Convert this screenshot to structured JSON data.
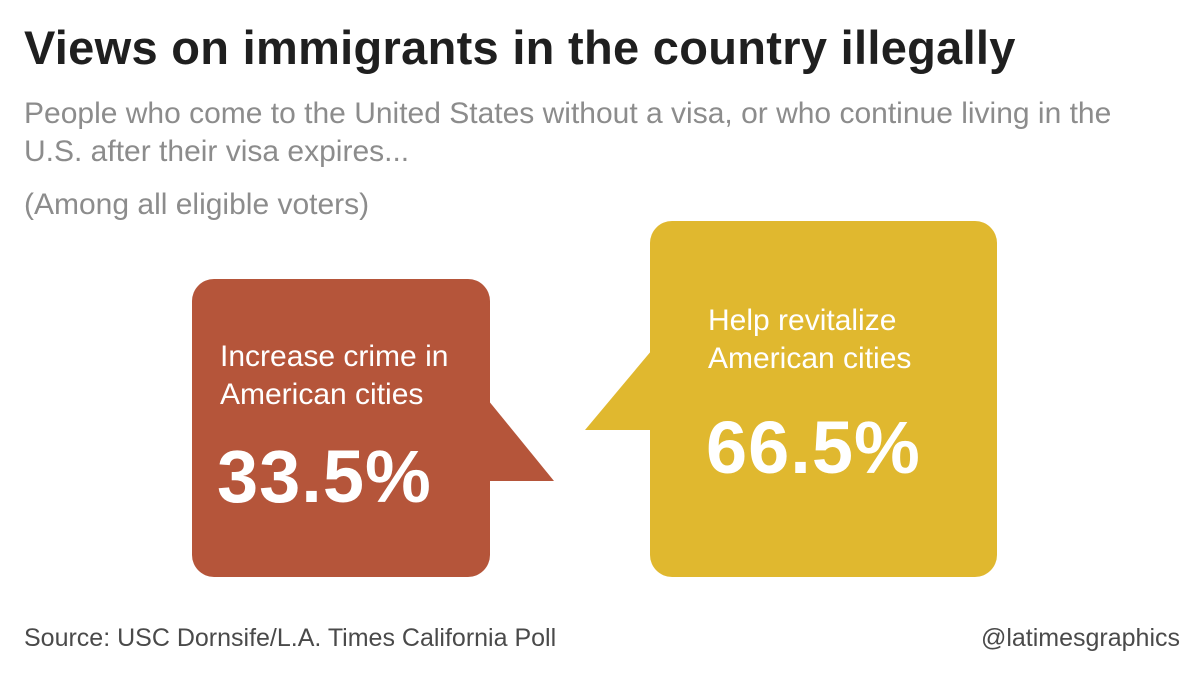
{
  "title": "Views on immigrants in the country illegally",
  "subtitle": "People who come to the United States without a visa, or who continue living in the U.S. after their visa expires...",
  "note": "(Among all eligible voters)",
  "source": "Source: USC Dornsife/L.A. Times California Poll",
  "credit": "@latimesgraphics",
  "colors": {
    "crime": "#b5553a",
    "revitalize": "#e0b82f"
  },
  "chart_data": {
    "type": "bar",
    "title": "Views on immigrants in the country illegally",
    "categories": [
      "Increase crime in American cities",
      "Help revitalize American cities"
    ],
    "values": [
      33.5,
      66.5
    ],
    "value_labels": [
      "33.5%",
      "66.5%"
    ],
    "unit": "%"
  }
}
